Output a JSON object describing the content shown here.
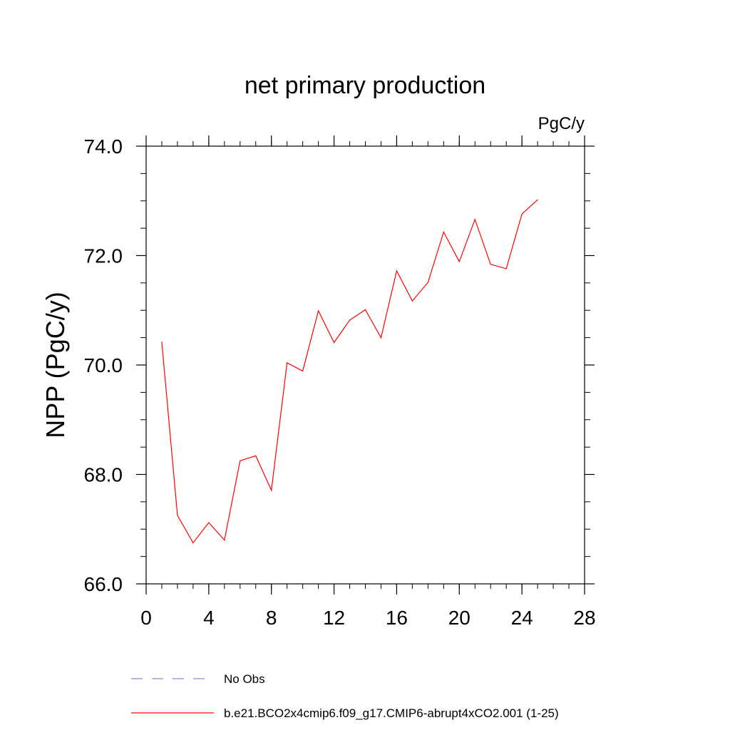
{
  "chart_data": {
    "type": "line",
    "title": "net primary production",
    "units_label": "PgC/y",
    "xlabel": "",
    "ylabel": "NPP  (PgC/y)",
    "xlim": [
      0,
      28
    ],
    "ylim": [
      66.0,
      74.0
    ],
    "x_ticks": [
      0,
      4,
      8,
      12,
      16,
      20,
      24,
      28
    ],
    "x_tick_labels": [
      "0",
      "4",
      "8",
      "12",
      "16",
      "20",
      "24",
      "28"
    ],
    "x_minor_step": 1,
    "y_ticks": [
      66.0,
      68.0,
      70.0,
      72.0,
      74.0
    ],
    "y_tick_labels": [
      "66.0",
      "68.0",
      "70.0",
      "72.0",
      "74.0"
    ],
    "y_minor_step": 0.5,
    "grid": false,
    "series": [
      {
        "name": "b.e21.BCO2x4cmip6.f09_g17.CMIP6-abrupt4xCO2.001 (1-25)",
        "color": "#ff0000",
        "style": "solid",
        "x": [
          1,
          2,
          3,
          4,
          5,
          6,
          7,
          8,
          9,
          10,
          11,
          12,
          13,
          14,
          15,
          16,
          17,
          18,
          19,
          20,
          21,
          22,
          23,
          24,
          25
        ],
        "values": [
          70.42,
          67.25,
          66.75,
          67.12,
          66.8,
          68.25,
          68.34,
          67.71,
          70.04,
          69.89,
          70.99,
          70.41,
          70.82,
          71.01,
          70.5,
          71.72,
          71.17,
          71.51,
          72.43,
          71.89,
          72.66,
          71.84,
          71.76,
          72.76,
          73.02
        ]
      }
    ],
    "legend": {
      "position": "bottom",
      "entries": [
        {
          "label": "No Obs",
          "color": "#8c8cd8",
          "style": "dashed"
        },
        {
          "label": "b.e21.BCO2x4cmip6.f09_g17.CMIP6-abrupt4xCO2.001 (1-25)",
          "color": "#ff0000",
          "style": "solid"
        }
      ]
    }
  }
}
